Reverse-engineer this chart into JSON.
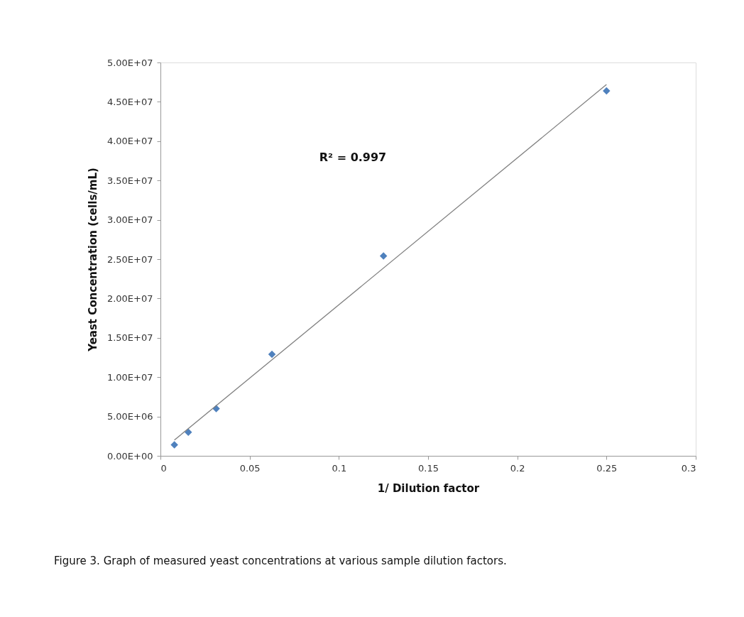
{
  "chart_data": {
    "type": "scatter",
    "xlabel": "1/ Dilution factor",
    "ylabel": "Yeast Concentration (cells/mL)",
    "series": [
      {
        "color": "#4f81bd",
        "marker": "diamond",
        "x": [
          0.0078125,
          0.015625,
          0.03125,
          0.0625,
          0.125,
          0.25
        ],
        "values": [
          1400000.0,
          3000000.0,
          6000000.0,
          12900000.0,
          25400000.0,
          46400000.0
        ]
      },
      {
        "type": "line",
        "color": "#808080",
        "line_style": "solid",
        "x": [
          0.0078125,
          0.25
        ],
        "values": [
          2000000.0,
          47200000.0
        ]
      }
    ],
    "xlim": [
      0,
      0.3
    ],
    "xticks": [
      0,
      0.05,
      0.1,
      0.15,
      0.2,
      0.25,
      0.3
    ],
    "ylim": [
      0,
      50000000.0
    ],
    "yticks": [
      {
        "value": 0,
        "label": "0.00E+00"
      },
      {
        "value": 5000000,
        "label": "5.00E+06"
      },
      {
        "value": 10000000,
        "label": "1.00E+07"
      },
      {
        "value": 15000000,
        "label": "1.50E+07"
      },
      {
        "value": 20000000,
        "label": "2.00E+07"
      },
      {
        "value": 25000000,
        "label": "2.50E+07"
      },
      {
        "value": 30000000,
        "label": "3.00E+07"
      },
      {
        "value": 35000000,
        "label": "3.50E+07"
      },
      {
        "value": 40000000,
        "label": "4.00E+07"
      },
      {
        "value": 45000000,
        "label": "4.50E+07"
      },
      {
        "value": 50000000,
        "label": "5.00E+07"
      }
    ],
    "annotations": [
      "R² = 0.997",
      "Figure 3.  Graph of measured yeast concentrations at various sample dilution factors."
    ],
    "grid": false
  }
}
